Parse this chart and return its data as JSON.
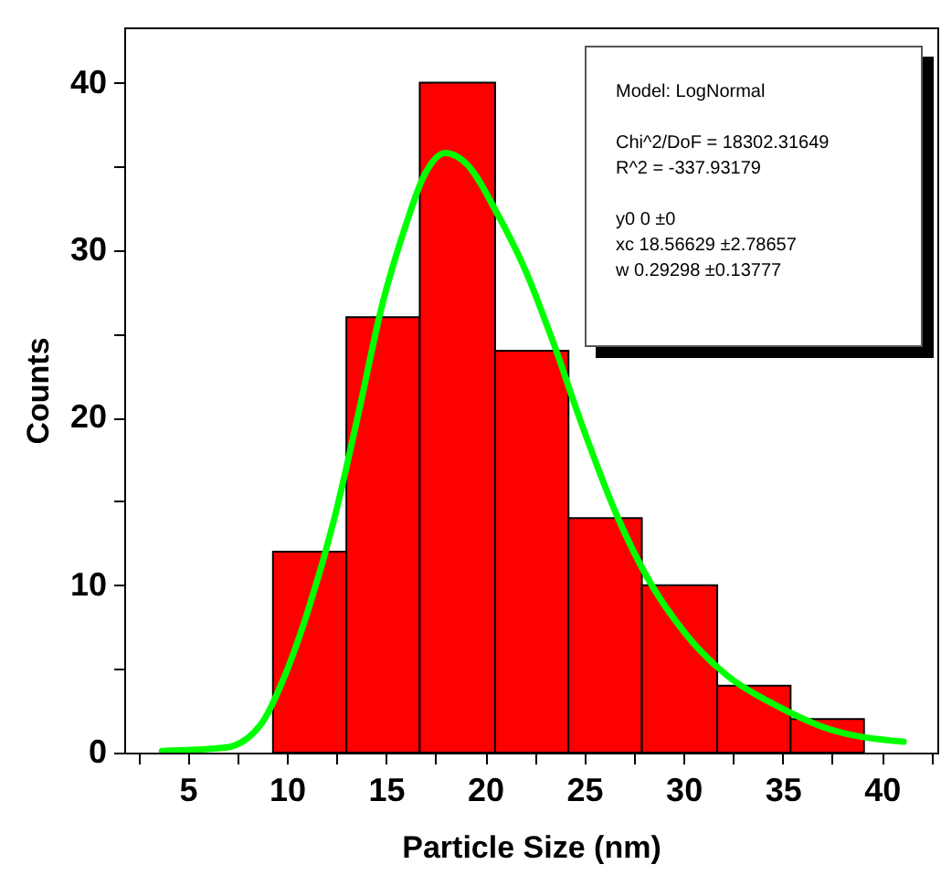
{
  "chart_data": {
    "type": "histogram",
    "xlabel": "Particle Size (nm)",
    "ylabel": "Counts",
    "bins": [
      9.3,
      13,
      16.7,
      20.5,
      24.2,
      27.9,
      31.7,
      35.4,
      39.1
    ],
    "values": [
      12,
      26,
      40,
      24,
      14,
      10,
      4,
      2
    ],
    "color": "#ff0000",
    "series": [
      {
        "type": "line",
        "color": "#00ff00",
        "x": [
          3.7,
          6.9,
          8.7,
          9.9,
          11.1,
          12.4,
          13.6,
          14.8,
          16.0,
          16.9,
          18.0,
          19.1,
          20.6,
          22.1,
          23.4,
          24.9,
          26.7,
          28.2,
          30.1,
          32.2,
          34.7,
          37.1,
          41.1
        ],
        "values": [
          0.1,
          0.3,
          1.7,
          4.6,
          8.6,
          14,
          20.2,
          26.7,
          31.5,
          34.4,
          35.8,
          35.1,
          32.2,
          28.6,
          24.6,
          19.5,
          14,
          10.4,
          7.1,
          4.6,
          2.8,
          1.5,
          0.65
        ]
      }
    ],
    "xlim": [
      1.8,
      42.8
    ],
    "xticks": [
      {
        "value": 2.5,
        "label": null
      },
      5,
      {
        "value": 7.5,
        "label": null
      },
      10,
      {
        "value": 12.5,
        "label": null
      },
      15,
      {
        "value": 17.5,
        "label": null
      },
      20,
      {
        "value": 22.5,
        "label": null
      },
      25,
      {
        "value": 27.5,
        "label": null
      },
      30,
      {
        "value": 32.5,
        "label": null
      },
      35,
      {
        "value": 37.5,
        "label": null
      },
      40,
      {
        "value": 42.5,
        "label": null
      }
    ],
    "ylim": [
      0,
      43.3
    ],
    "yticks": [
      0,
      {
        "value": 5,
        "label": null
      },
      10,
      {
        "value": 15,
        "label": null
      },
      20,
      {
        "value": 25,
        "label": null
      },
      30,
      {
        "value": 35,
        "label": null
      },
      40
    ],
    "annotations": [
      "Model: LogNormal",
      "Chi^2/DoF = 18302.31649",
      "R^2 = -337.93179",
      "y0 0 ±0",
      "xc 18.56629 ±2.78657",
      "w 0.29298 ±0.13777"
    ]
  }
}
